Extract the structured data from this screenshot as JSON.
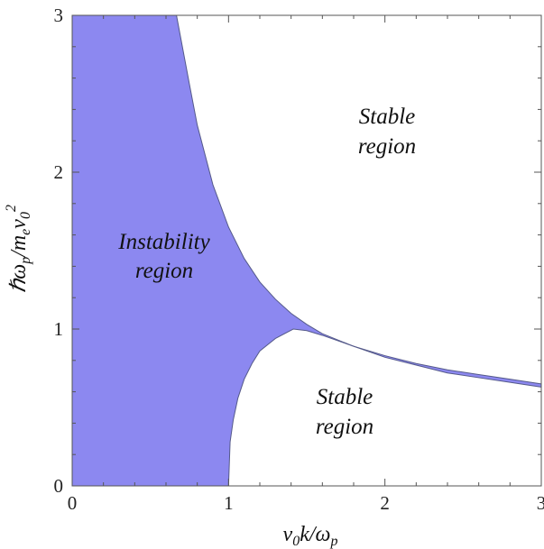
{
  "chart_data": {
    "type": "area",
    "title": "",
    "xlabel": "v0k/ωp",
    "ylabel": "ℏωp/mev0^2",
    "xlim": [
      0,
      3
    ],
    "ylim": [
      0,
      3
    ],
    "xticks": [
      "0",
      "1",
      "2",
      "3"
    ],
    "yticks": [
      "0",
      "1",
      "2",
      "3"
    ],
    "fill_color": "#8c88f0",
    "regions": {
      "instability": [
        "Instability",
        "region"
      ],
      "stable_upper": [
        "Stable",
        "region"
      ],
      "stable_lower": [
        "Stable",
        "region"
      ]
    },
    "upper_boundary": {
      "x": [
        0,
        0.5,
        0.667,
        0.75,
        0.8,
        0.9,
        1.0,
        1.1,
        1.2,
        1.3,
        1.4,
        1.5,
        1.6,
        1.8,
        2.0,
        2.2,
        2.4,
        2.6,
        2.8,
        3.0
      ],
      "y": [
        3,
        3,
        3,
        2.56,
        2.3,
        1.92,
        1.65,
        1.45,
        1.3,
        1.19,
        1.1,
        1.03,
        0.97,
        0.89,
        0.83,
        0.78,
        0.74,
        0.71,
        0.68,
        0.65
      ]
    },
    "lower_boundary": {
      "x": [
        1.0,
        1.01,
        1.03,
        1.06,
        1.1,
        1.15,
        1.2,
        1.3,
        1.414,
        1.5,
        1.6,
        1.8,
        2.0,
        2.2,
        2.4,
        2.6,
        2.8,
        3.0
      ],
      "y": [
        0,
        0.28,
        0.42,
        0.56,
        0.68,
        0.78,
        0.86,
        0.94,
        1.0,
        0.99,
        0.96,
        0.89,
        0.82,
        0.77,
        0.72,
        0.69,
        0.66,
        0.63
      ]
    }
  }
}
